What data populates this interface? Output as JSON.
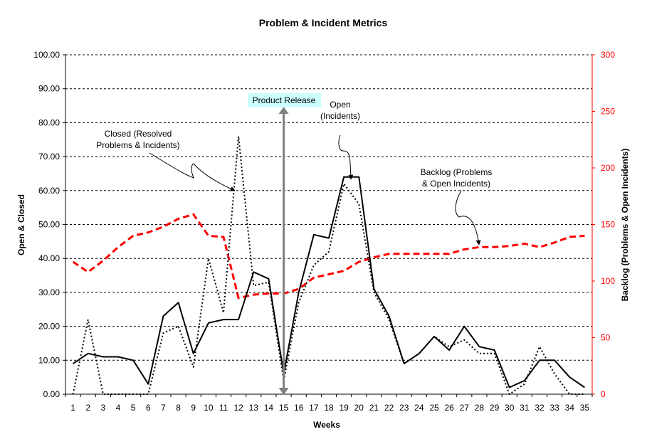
{
  "chart_data": {
    "type": "line",
    "title": "Problem & Incident Metrics",
    "xlabel": "Weeks",
    "ylabel": "Open & Closed",
    "y2label": "Backlog (Problems & Open Incidents)",
    "x": [
      1,
      2,
      3,
      4,
      5,
      6,
      7,
      8,
      9,
      10,
      11,
      12,
      13,
      14,
      15,
      16,
      17,
      18,
      19,
      20,
      21,
      22,
      23,
      24,
      25,
      26,
      27,
      28,
      29,
      30,
      31,
      32,
      33,
      34,
      35
    ],
    "ylim": [
      0,
      100
    ],
    "y2lim": [
      0,
      300
    ],
    "yticks": [
      "0.00",
      "10.00",
      "20.00",
      "30.00",
      "40.00",
      "50.00",
      "60.00",
      "70.00",
      "80.00",
      "90.00",
      "100.00"
    ],
    "y2ticks": [
      "0",
      "50",
      "100",
      "150",
      "200",
      "250",
      "300"
    ],
    "grid": true,
    "colors": {
      "open": "#000000",
      "closed": "#000000",
      "backlog": "#ff0000",
      "release": "#808080",
      "release_label_bg": "#ccffff"
    },
    "series": [
      {
        "name": "Open (Incidents)",
        "axis": "left",
        "style": "solid",
        "values": [
          9,
          12,
          11,
          11,
          10,
          3,
          23,
          27,
          12,
          21,
          22,
          22,
          36,
          34,
          6,
          30,
          47,
          46,
          64,
          64,
          31,
          23,
          9,
          12,
          17,
          13,
          20,
          14,
          13,
          2,
          4,
          10,
          10,
          5,
          2
        ]
      },
      {
        "name": "Closed (Resolved Problems & Incidents)",
        "axis": "left",
        "style": "dotted",
        "values": [
          0,
          22,
          0,
          0,
          0,
          0,
          18,
          20,
          8,
          40,
          24,
          76,
          32,
          33,
          4,
          27,
          38,
          42,
          62,
          56,
          30,
          22,
          9,
          12,
          17,
          14,
          16,
          12,
          12,
          0,
          3,
          14,
          6,
          0,
          0
        ]
      },
      {
        "name": "Backlog (Problems & Open Incidents)",
        "axis": "right",
        "style": "dashed",
        "values": [
          117,
          108,
          118,
          130,
          140,
          143,
          148,
          155,
          159,
          140,
          139,
          85,
          88,
          89,
          89,
          93,
          103,
          106,
          109,
          117,
          121,
          124,
          124,
          124,
          124,
          124,
          128,
          130,
          130,
          131,
          133,
          130,
          134,
          139,
          140
        ]
      }
    ],
    "annotations": [
      {
        "key": "closed",
        "lines": [
          "Closed (Resolved",
          "Problems & Incidents)"
        ]
      },
      {
        "key": "open",
        "lines": [
          "Open",
          "(Incidents)"
        ]
      },
      {
        "key": "backlog",
        "lines": [
          "Backlog (Problems",
          "& Open Incidents)"
        ]
      }
    ],
    "release": {
      "label": "Product Release",
      "week": 15
    }
  }
}
